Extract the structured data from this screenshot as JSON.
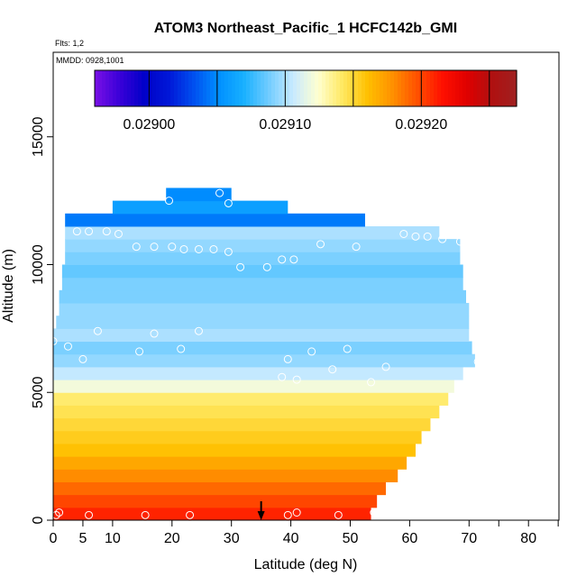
{
  "chart_data": {
    "type": "heatmap",
    "title": "ATOM3 Northeast_Pacific_1 HCFC142b_GMI",
    "flights_label": "Flts: 1,2",
    "mmdd_label": "MMDD: 0928,1001",
    "xlabel": "Latitude (deg N)",
    "ylabel": "Altitude (m)",
    "xlim": [
      0,
      85
    ],
    "ylim": [
      0,
      17500
    ],
    "x_ticks": [
      0,
      5,
      10,
      20,
      30,
      40,
      50,
      60,
      70,
      80
    ],
    "x_tick_labels": [
      "0",
      "5",
      "10",
      "20",
      "30",
      "40",
      "50",
      "60",
      "70",
      "80"
    ],
    "x_minor_ticks": [
      75,
      85
    ],
    "y_ticks": [
      0,
      5000,
      10000,
      15000
    ],
    "y_tick_labels": [
      "0",
      "5000",
      "10000",
      "15000"
    ],
    "colorbar": {
      "range": [
        0.02896,
        0.02927
      ],
      "tick_values": [
        0.029,
        0.0291,
        0.0292
      ],
      "tick_labels": [
        "0.02900",
        "0.02910",
        "0.02920"
      ],
      "colors": [
        "#7a10e6",
        "#3a00d8",
        "#0000c8",
        "#0018d8",
        "#0050f0",
        "#0090ff",
        "#18b0ff",
        "#70ccff",
        "#c8eaff",
        "#ffffd0",
        "#ffe860",
        "#ffc000",
        "#ff9000",
        "#ff5000",
        "#ff1000",
        "#e00000",
        "#b01010",
        "#a02020"
      ]
    },
    "arrow_marker_latitude": 35,
    "altitude_bands": [
      {
        "alt_bottom": 0,
        "alt_top": 500,
        "lat_min": 0,
        "lat_max": 53.5,
        "value": 0.02921
      },
      {
        "alt_bottom": 500,
        "alt_top": 1000,
        "lat_min": 0,
        "lat_max": 54.5,
        "value": 0.0292
      },
      {
        "alt_bottom": 1000,
        "alt_top": 1500,
        "lat_min": 0,
        "lat_max": 56,
        "value": 0.02919
      },
      {
        "alt_bottom": 1500,
        "alt_top": 2000,
        "lat_min": 0,
        "lat_max": 58,
        "value": 0.02918
      },
      {
        "alt_bottom": 2000,
        "alt_top": 2500,
        "lat_min": 0,
        "lat_max": 59.5,
        "value": 0.02917
      },
      {
        "alt_bottom": 2500,
        "alt_top": 3000,
        "lat_min": 0,
        "lat_max": 61,
        "value": 0.02916
      },
      {
        "alt_bottom": 3000,
        "alt_top": 3500,
        "lat_min": 0,
        "lat_max": 62,
        "value": 0.029155
      },
      {
        "alt_bottom": 3500,
        "alt_top": 4000,
        "lat_min": 0,
        "lat_max": 63.5,
        "value": 0.02915
      },
      {
        "alt_bottom": 4000,
        "alt_top": 4500,
        "lat_min": 0,
        "lat_max": 65,
        "value": 0.029145
      },
      {
        "alt_bottom": 4500,
        "alt_top": 5000,
        "lat_min": 0,
        "lat_max": 66.5,
        "value": 0.02914
      },
      {
        "alt_bottom": 5000,
        "alt_top": 5500,
        "lat_min": 0,
        "lat_max": 67.5,
        "value": 0.02912
      },
      {
        "alt_bottom": 5500,
        "alt_top": 6000,
        "lat_min": 0,
        "lat_max": 69,
        "value": 0.029105
      },
      {
        "alt_bottom": 6000,
        "alt_top": 6500,
        "lat_min": 0,
        "lat_max": 71,
        "value": 0.029095
      },
      {
        "alt_bottom": 6500,
        "alt_top": 7000,
        "lat_min": 0,
        "lat_max": 70.5,
        "value": 0.02909
      },
      {
        "alt_bottom": 7000,
        "alt_top": 7500,
        "lat_min": 0,
        "lat_max": 70,
        "value": 0.0291
      },
      {
        "alt_bottom": 7500,
        "alt_top": 8000,
        "lat_min": 0.5,
        "lat_max": 70,
        "value": 0.029095
      },
      {
        "alt_bottom": 8000,
        "alt_top": 8500,
        "lat_min": 1,
        "lat_max": 70,
        "value": 0.029095
      },
      {
        "alt_bottom": 8500,
        "alt_top": 9000,
        "lat_min": 1,
        "lat_max": 69.5,
        "value": 0.02909
      },
      {
        "alt_bottom": 9000,
        "alt_top": 9500,
        "lat_min": 1.5,
        "lat_max": 69,
        "value": 0.02909
      },
      {
        "alt_bottom": 9500,
        "alt_top": 10000,
        "lat_min": 1.5,
        "lat_max": 69,
        "value": 0.029085
      },
      {
        "alt_bottom": 10000,
        "alt_top": 10500,
        "lat_min": 2,
        "lat_max": 68.5,
        "value": 0.02909
      },
      {
        "alt_bottom": 10500,
        "alt_top": 11000,
        "lat_min": 2,
        "lat_max": 68.5,
        "value": 0.029095
      },
      {
        "alt_bottom": 11000,
        "alt_top": 11500,
        "lat_min": 2,
        "lat_max": 65,
        "value": 0.0291
      },
      {
        "alt_bottom": 11500,
        "alt_top": 12000,
        "lat_min": 2,
        "lat_max": 52.5,
        "value": 0.029045
      },
      {
        "alt_bottom": 12000,
        "alt_top": 12500,
        "lat_min": 10,
        "lat_max": 39.5,
        "value": 0.02906
      },
      {
        "alt_bottom": 12500,
        "alt_top": 13000,
        "lat_min": 19,
        "lat_max": 30,
        "value": 0.02905
      }
    ],
    "flight_points": [
      {
        "lat": 0.5,
        "alt": 200
      },
      {
        "lat": 1,
        "alt": 300
      },
      {
        "lat": 6,
        "alt": 200
      },
      {
        "lat": 15.5,
        "alt": 200
      },
      {
        "lat": 23,
        "alt": 200
      },
      {
        "lat": 39.5,
        "alt": 200
      },
      {
        "lat": 41,
        "alt": 300
      },
      {
        "lat": 48,
        "alt": 200
      },
      {
        "lat": 54,
        "alt": 300
      },
      {
        "lat": 5,
        "alt": 6300
      },
      {
        "lat": 2.5,
        "alt": 6800
      },
      {
        "lat": 7.5,
        "alt": 7400
      },
      {
        "lat": 14.5,
        "alt": 6600
      },
      {
        "lat": 17,
        "alt": 7300
      },
      {
        "lat": 21.5,
        "alt": 6700
      },
      {
        "lat": 24.5,
        "alt": 7400
      },
      {
        "lat": 38.5,
        "alt": 5600
      },
      {
        "lat": 39.5,
        "alt": 6300
      },
      {
        "lat": 41,
        "alt": 5500
      },
      {
        "lat": 43.5,
        "alt": 6600
      },
      {
        "lat": 47,
        "alt": 5900
      },
      {
        "lat": 49.5,
        "alt": 6700
      },
      {
        "lat": 53.5,
        "alt": 5400
      },
      {
        "lat": 56,
        "alt": 6000
      },
      {
        "lat": 71.5,
        "alt": 6200
      },
      {
        "lat": 0,
        "alt": 7000
      },
      {
        "lat": 4,
        "alt": 11300
      },
      {
        "lat": 6,
        "alt": 11300
      },
      {
        "lat": 9,
        "alt": 11300
      },
      {
        "lat": 11,
        "alt": 11200
      },
      {
        "lat": 14,
        "alt": 10700
      },
      {
        "lat": 17,
        "alt": 10700
      },
      {
        "lat": 20,
        "alt": 10700
      },
      {
        "lat": 22,
        "alt": 10600
      },
      {
        "lat": 24.5,
        "alt": 10600
      },
      {
        "lat": 27,
        "alt": 10600
      },
      {
        "lat": 29.5,
        "alt": 10500
      },
      {
        "lat": 31.5,
        "alt": 9900
      },
      {
        "lat": 36,
        "alt": 9900
      },
      {
        "lat": 38.5,
        "alt": 10200
      },
      {
        "lat": 40.5,
        "alt": 10200
      },
      {
        "lat": 45,
        "alt": 10800
      },
      {
        "lat": 51,
        "alt": 10700
      },
      {
        "lat": 59,
        "alt": 11200
      },
      {
        "lat": 61,
        "alt": 11100
      },
      {
        "lat": 63,
        "alt": 11100
      },
      {
        "lat": 65.5,
        "alt": 11000
      },
      {
        "lat": 68.5,
        "alt": 10900
      },
      {
        "lat": 19.5,
        "alt": 12500
      },
      {
        "lat": 28,
        "alt": 12800
      },
      {
        "lat": 29.5,
        "alt": 12400
      }
    ]
  }
}
